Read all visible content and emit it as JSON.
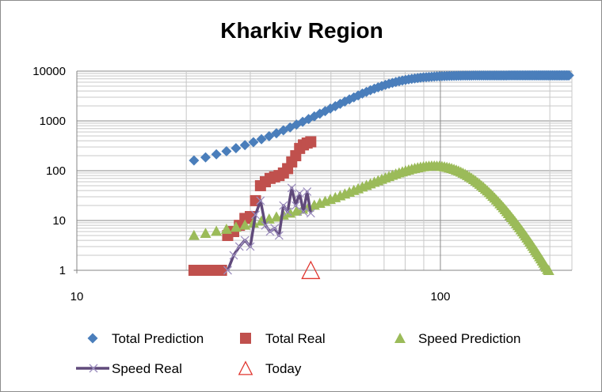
{
  "chart_data": {
    "type": "scatter",
    "title": "Kharkiv Region",
    "xlabel": "",
    "ylabel": "",
    "x_scale": "log",
    "y_scale": "log",
    "xlim": [
      10,
      230
    ],
    "ylim": [
      1,
      10000
    ],
    "x_ticks": [
      "10",
      "100"
    ],
    "y_ticks": [
      "1",
      "10",
      "100",
      "1000",
      "10000"
    ],
    "grid": true,
    "legend_position": "bottom",
    "series": [
      {
        "name": "Total Prediction",
        "color": "#4a7ebb",
        "marker": "diamond",
        "model": "logistic",
        "params": {
          "K": 8200,
          "t0": 64,
          "r": 0.091
        },
        "x_range": [
          21,
          226
        ]
      },
      {
        "name": "Total Real",
        "color": "#c0504d",
        "marker": "square",
        "x": [
          21,
          22,
          23,
          24,
          25,
          26,
          27,
          28,
          29,
          30,
          31,
          32,
          33,
          34,
          35,
          36,
          37,
          38,
          39,
          40,
          41,
          42,
          43,
          44
        ],
        "y": [
          1,
          1,
          1,
          1,
          1,
          5,
          6,
          8,
          11,
          12,
          25,
          50,
          60,
          70,
          75,
          80,
          90,
          110,
          150,
          200,
          280,
          330,
          360,
          380
        ]
      },
      {
        "name": "Speed Prediction",
        "color": "#9bbb59",
        "marker": "triangle",
        "model": "logistic-derivative",
        "params": {
          "K": 8200,
          "t0": 96,
          "r": 0.061
        },
        "x_range": [
          21,
          226
        ]
      },
      {
        "name": "Speed Real",
        "color": "#604a7b",
        "marker": "x-line",
        "x": [
          26,
          27,
          28,
          29,
          30,
          31,
          32,
          33,
          34,
          35,
          36,
          37,
          38,
          39,
          40,
          41,
          42,
          43,
          44
        ],
        "y": [
          1,
          2,
          3,
          4,
          3,
          13,
          25,
          8,
          6,
          7,
          5,
          20,
          15,
          45,
          20,
          35,
          15,
          38,
          14
        ]
      },
      {
        "name": "Today",
        "color": "#e0352e",
        "marker": "open-triangle",
        "x": [
          44
        ],
        "y": [
          1
        ]
      }
    ]
  }
}
